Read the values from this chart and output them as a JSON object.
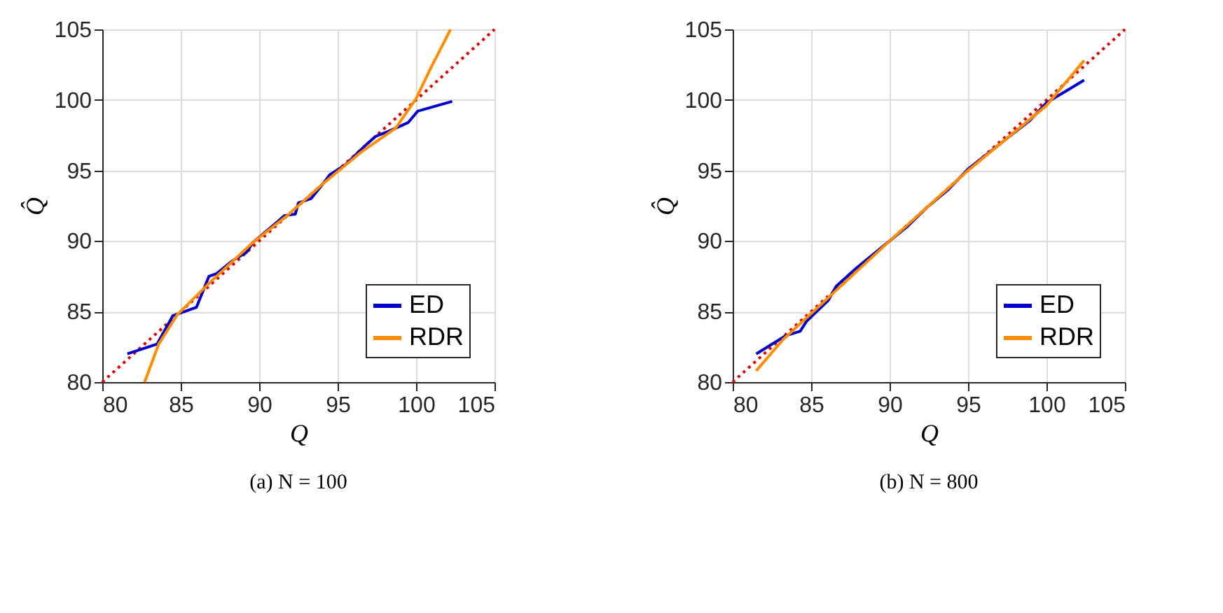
{
  "chart_data": [
    {
      "type": "line",
      "xlabel": "Q",
      "ylabel": "Q̂",
      "annotations": [
        "(a) N = 100"
      ],
      "xlim": [
        80,
        105
      ],
      "ylim": [
        80,
        105
      ],
      "xticks": [
        80,
        85,
        90,
        95,
        100,
        105
      ],
      "yticks": [
        80,
        85,
        90,
        95,
        100,
        105
      ],
      "grid": true,
      "legend": "bottom right",
      "series": [
        {
          "name": "ED",
          "color": "#0000cc",
          "x": [
            81.6,
            83.5,
            84.5,
            86.0,
            86.8,
            87.3,
            88.3,
            89.2,
            89.6,
            91.2,
            91.6,
            92.3,
            92.5,
            93.3,
            94.1,
            94.5,
            95.5,
            96.7,
            97.4,
            98.3,
            99.5,
            100.1,
            102.3
          ],
          "values": [
            82.0,
            82.7,
            84.7,
            85.3,
            87.5,
            87.7,
            88.6,
            89.2,
            89.9,
            91.4,
            91.8,
            91.9,
            92.7,
            93.0,
            94.1,
            94.7,
            95.4,
            96.7,
            97.4,
            97.8,
            98.4,
            99.2,
            99.9
          ]
        },
        {
          "name": "RDR",
          "color": "#ff8c00",
          "x": [
            82.7,
            83.6,
            84.8,
            86.9,
            89.5,
            91.9,
            93.9,
            96.5,
            98.7,
            100.0,
            101.0,
            102.2
          ],
          "values": [
            80.0,
            82.7,
            84.8,
            87.1,
            89.8,
            91.9,
            93.9,
            96.3,
            98.0,
            100.1,
            102.4,
            105.0
          ]
        },
        {
          "color": "#e00000",
          "line_style": "dotted",
          "x": [
            80,
            105
          ],
          "values": [
            80,
            105
          ]
        }
      ]
    },
    {
      "type": "line",
      "xlabel": "Q",
      "ylabel": "Q̂",
      "annotations": [
        "(b) N = 800"
      ],
      "xlim": [
        80,
        105
      ],
      "ylim": [
        80,
        105
      ],
      "xticks": [
        80,
        85,
        90,
        95,
        100,
        105
      ],
      "yticks": [
        80,
        85,
        90,
        95,
        100,
        105
      ],
      "grid": true,
      "legend": "bottom right",
      "series": [
        {
          "name": "ED",
          "color": "#0000cc",
          "x": [
            81.5,
            83.4,
            84.3,
            84.7,
            86.1,
            86.6,
            87.9,
            90.0,
            91.1,
            92.4,
            93.7,
            95.0,
            97.4,
            98.9,
            100.0,
            102.4
          ],
          "values": [
            82.0,
            83.3,
            83.6,
            84.3,
            85.8,
            86.8,
            88.1,
            90.0,
            91.0,
            92.4,
            93.6,
            95.1,
            97.2,
            98.5,
            99.8,
            101.4
          ]
        },
        {
          "name": "RDR",
          "color": "#ff8c00",
          "x": [
            81.5,
            83.2,
            90.0,
            95.0,
            100.0,
            102.4
          ],
          "values": [
            80.8,
            83.0,
            90.0,
            95.0,
            99.6,
            102.8
          ]
        },
        {
          "color": "#e00000",
          "line_style": "dotted",
          "x": [
            80,
            105
          ],
          "values": [
            80,
            105
          ]
        }
      ]
    }
  ]
}
